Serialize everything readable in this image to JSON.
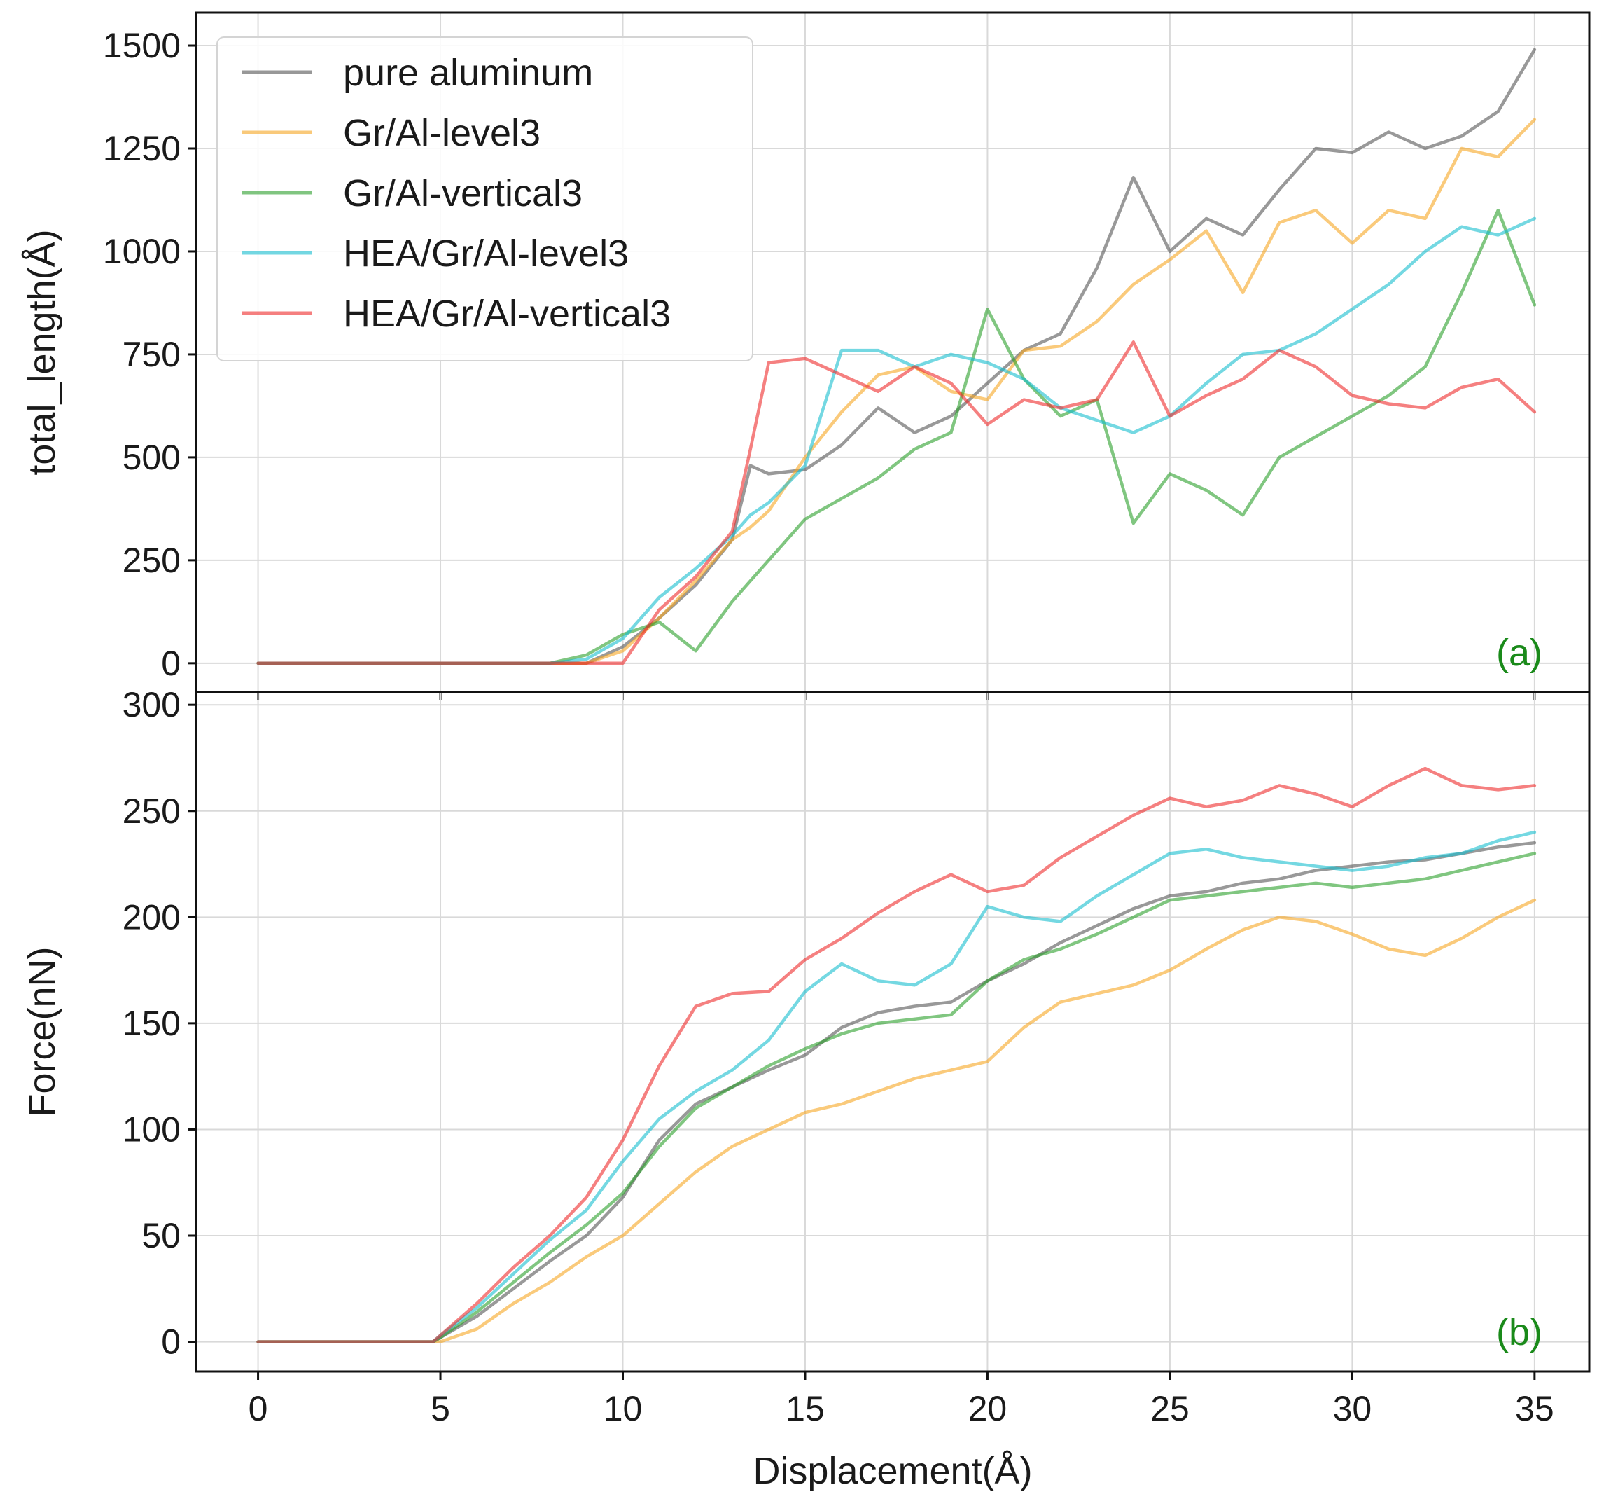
{
  "colors": {
    "pure aluminum": "#555555",
    "Gr/Al-level3": "#f6a623",
    "Gr/Al-vertical3": "#2ca02c",
    "HEA/Gr/Al-level3": "#17becf",
    "HEA/Gr/Al-vertical3": "#ef2b2b",
    "panel_label": "#1a8a1a"
  },
  "chart_data": [
    {
      "id": "a",
      "type": "line",
      "panel_label": "(a)",
      "xlabel": "",
      "ylabel": "total_length(Å)",
      "xlim": [
        -1.7,
        36.5
      ],
      "ylim": [
        -70,
        1580
      ],
      "xticks": [
        0,
        5,
        10,
        15,
        20,
        25,
        30,
        35
      ],
      "yticks": [
        0,
        250,
        500,
        750,
        1000,
        1250,
        1500
      ],
      "legend": {
        "position": "top-left",
        "entries": [
          "pure aluminum",
          "Gr/Al-level3",
          "Gr/Al-vertical3",
          "HEA/Gr/Al-level3",
          "HEA/Gr/Al-vertical3"
        ]
      },
      "x": [
        0,
        8,
        9,
        10,
        11,
        12,
        13,
        13.5,
        14,
        15,
        16,
        17,
        18,
        19,
        20,
        21,
        22,
        23,
        24,
        25,
        26,
        27,
        28,
        29,
        30,
        31,
        32,
        33,
        34,
        35
      ],
      "series": [
        {
          "name": "pure aluminum",
          "values": [
            0,
            0,
            0,
            40,
            110,
            190,
            300,
            480,
            460,
            470,
            530,
            620,
            560,
            600,
            680,
            760,
            800,
            960,
            1180,
            1000,
            1080,
            1040,
            1150,
            1250,
            1240,
            1290,
            1250,
            1280,
            1340,
            1490
          ]
        },
        {
          "name": "Gr/Al-level3",
          "values": [
            0,
            0,
            0,
            30,
            110,
            200,
            300,
            330,
            370,
            500,
            610,
            700,
            720,
            660,
            640,
            760,
            770,
            830,
            920,
            980,
            1050,
            900,
            1070,
            1100,
            1020,
            1100,
            1080,
            1250,
            1230,
            1320
          ]
        },
        {
          "name": "Gr/Al-vertical3",
          "values": [
            0,
            0,
            20,
            70,
            100,
            30,
            150,
            200,
            250,
            350,
            400,
            450,
            520,
            560,
            860,
            690,
            600,
            640,
            340,
            460,
            420,
            360,
            500,
            550,
            600,
            650,
            720,
            900,
            1100,
            870
          ]
        },
        {
          "name": "HEA/Gr/Al-level3",
          "values": [
            0,
            0,
            10,
            60,
            160,
            230,
            310,
            360,
            390,
            480,
            760,
            760,
            720,
            750,
            730,
            690,
            620,
            590,
            560,
            600,
            680,
            750,
            760,
            800,
            860,
            920,
            1000,
            1060,
            1040,
            1080
          ]
        },
        {
          "name": "HEA/Gr/Al-vertical3",
          "values": [
            0,
            0,
            0,
            0,
            130,
            210,
            320,
            520,
            730,
            740,
            700,
            660,
            720,
            680,
            580,
            640,
            620,
            640,
            780,
            600,
            650,
            690,
            760,
            720,
            650,
            630,
            620,
            670,
            690,
            610
          ]
        }
      ]
    },
    {
      "id": "b",
      "type": "line",
      "panel_label": "(b)",
      "xlabel": "Displacement(Å)",
      "ylabel": "Force(nN)",
      "xlim": [
        -1.7,
        36.5
      ],
      "ylim": [
        -14,
        306
      ],
      "xticks": [
        0,
        5,
        10,
        15,
        20,
        25,
        30,
        35
      ],
      "yticks": [
        0,
        50,
        100,
        150,
        200,
        250,
        300
      ],
      "x": [
        0,
        4.8,
        5,
        6,
        7,
        8,
        9,
        10,
        11,
        12,
        13,
        14,
        15,
        16,
        17,
        18,
        19,
        20,
        21,
        22,
        23,
        24,
        25,
        26,
        27,
        28,
        29,
        30,
        31,
        32,
        33,
        34,
        35
      ],
      "series": [
        {
          "name": "pure aluminum",
          "values": [
            0,
            0,
            2,
            12,
            25,
            38,
            50,
            68,
            95,
            112,
            120,
            128,
            135,
            148,
            155,
            158,
            160,
            170,
            178,
            188,
            196,
            204,
            210,
            212,
            216,
            218,
            222,
            224,
            226,
            227,
            230,
            233,
            235
          ]
        },
        {
          "name": "Gr/Al-level3",
          "values": [
            0,
            0,
            0,
            6,
            18,
            28,
            40,
            50,
            65,
            80,
            92,
            100,
            108,
            112,
            118,
            124,
            128,
            132,
            148,
            160,
            164,
            168,
            175,
            185,
            194,
            200,
            198,
            192,
            185,
            182,
            190,
            200,
            208
          ]
        },
        {
          "name": "Gr/Al-vertical3",
          "values": [
            0,
            0,
            2,
            14,
            28,
            42,
            55,
            70,
            92,
            110,
            120,
            130,
            138,
            145,
            150,
            152,
            154,
            170,
            180,
            185,
            192,
            200,
            208,
            210,
            212,
            214,
            216,
            214,
            216,
            218,
            222,
            226,
            230
          ]
        },
        {
          "name": "HEA/Gr/Al-level3",
          "values": [
            0,
            0,
            3,
            16,
            32,
            48,
            62,
            85,
            105,
            118,
            128,
            142,
            165,
            178,
            170,
            168,
            178,
            205,
            200,
            198,
            210,
            220,
            230,
            232,
            228,
            226,
            224,
            222,
            224,
            228,
            230,
            236,
            240
          ]
        },
        {
          "name": "HEA/Gr/Al-vertical3",
          "values": [
            0,
            0,
            3,
            18,
            35,
            50,
            68,
            95,
            130,
            158,
            164,
            165,
            180,
            190,
            202,
            212,
            220,
            212,
            215,
            228,
            238,
            248,
            256,
            252,
            255,
            262,
            258,
            252,
            262,
            270,
            262,
            260,
            262
          ]
        }
      ]
    }
  ]
}
